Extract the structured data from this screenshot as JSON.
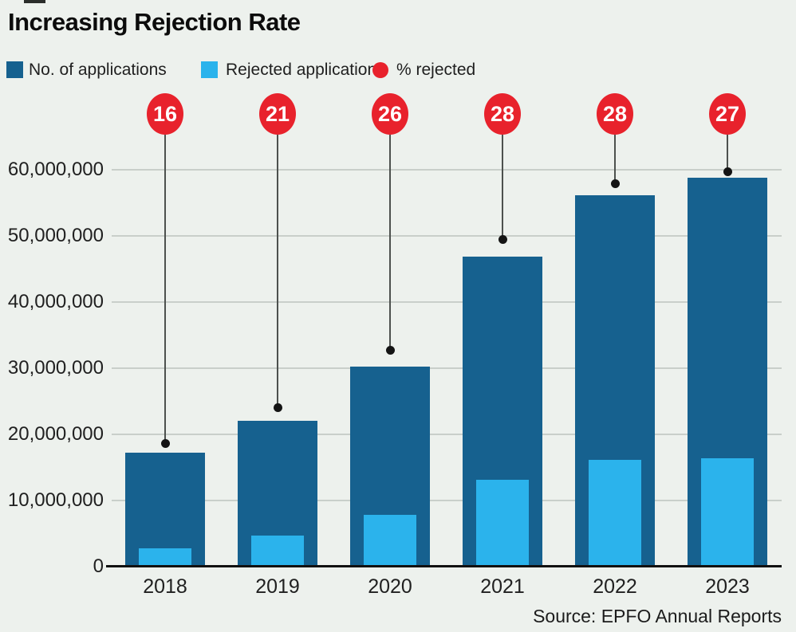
{
  "title": "Increasing Rejection Rate",
  "legend": {
    "applications": "No. of applications",
    "rejected": "Rejected applications",
    "pct": "% rejected"
  },
  "source": "Source: EPFO Annual Reports",
  "colors": {
    "applications_bar": "#16618f",
    "rejected_bar": "#2bb3ec",
    "pct_badge": "#e8222c",
    "background": "#edf1ed"
  },
  "chart_data": {
    "type": "bar",
    "categories": [
      "2018",
      "2019",
      "2020",
      "2021",
      "2022",
      "2023"
    ],
    "series": [
      {
        "name": "No. of applications",
        "values": [
          17200000,
          22000000,
          30200000,
          46900000,
          56200000,
          58800000
        ]
      },
      {
        "name": "Rejected applications",
        "values": [
          2800000,
          4700000,
          7800000,
          13100000,
          16200000,
          16400000
        ]
      },
      {
        "name": "% rejected",
        "values": [
          16,
          21,
          26,
          28,
          28,
          27
        ]
      }
    ],
    "title": "Increasing Rejection Rate",
    "xlabel": "",
    "ylabel": "",
    "ylim": [
      0,
      60000000
    ],
    "ytick_interval": 10000000,
    "ytick_labels": [
      "0",
      "10,000,000",
      "20,000,000",
      "30,000,000",
      "40,000,000",
      "50,000,000",
      "60,000,000"
    ],
    "grid": true,
    "legend_position": "top-left"
  }
}
